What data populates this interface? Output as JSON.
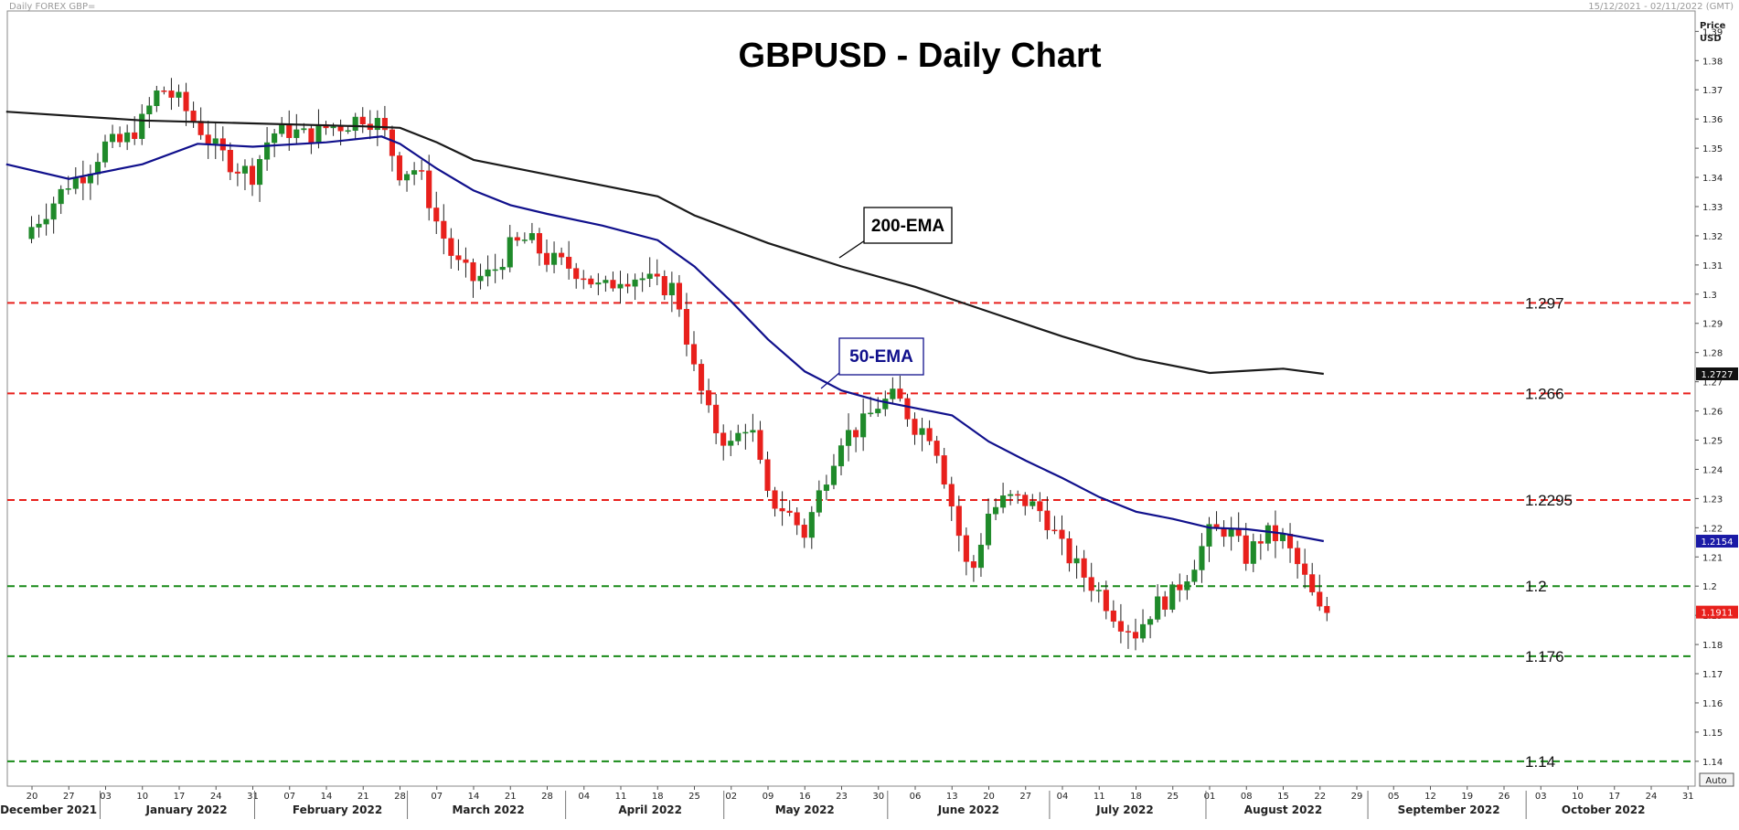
{
  "header": {
    "left_text": "Daily FOREX GBP=",
    "right_text": "15/12/2021 - 02/11/2022 (GMT)"
  },
  "axis": {
    "price_label_line1": "Price",
    "price_label_line2": "USD",
    "auto_label": "Auto"
  },
  "chart_data": {
    "type": "candlestick",
    "title": "GBPUSD - Daily Chart",
    "ylim": [
      1.134,
      1.397
    ],
    "y_ticks": [
      1.14,
      1.15,
      1.16,
      1.17,
      1.18,
      1.19,
      1.2,
      1.21,
      1.22,
      1.23,
      1.24,
      1.25,
      1.26,
      1.27,
      1.28,
      1.29,
      1.3,
      1.31,
      1.32,
      1.33,
      1.34,
      1.35,
      1.36,
      1.37,
      1.38,
      1.39
    ],
    "x_ticks": [
      {
        "label": "20",
        "week": 0
      },
      {
        "label": "27",
        "week": 1
      },
      {
        "label": "03",
        "week": 2
      },
      {
        "label": "10",
        "week": 3
      },
      {
        "label": "17",
        "week": 4
      },
      {
        "label": "24",
        "week": 5
      },
      {
        "label": "31",
        "week": 6
      },
      {
        "label": "07",
        "week": 7
      },
      {
        "label": "14",
        "week": 8
      },
      {
        "label": "21",
        "week": 9
      },
      {
        "label": "28",
        "week": 10
      },
      {
        "label": "07",
        "week": 11
      },
      {
        "label": "14",
        "week": 12
      },
      {
        "label": "21",
        "week": 13
      },
      {
        "label": "28",
        "week": 14
      },
      {
        "label": "04",
        "week": 15
      },
      {
        "label": "11",
        "week": 16
      },
      {
        "label": "18",
        "week": 17
      },
      {
        "label": "25",
        "week": 18
      },
      {
        "label": "02",
        "week": 19
      },
      {
        "label": "09",
        "week": 20
      },
      {
        "label": "16",
        "week": 21
      },
      {
        "label": "23",
        "week": 22
      },
      {
        "label": "30",
        "week": 23
      },
      {
        "label": "06",
        "week": 24
      },
      {
        "label": "13",
        "week": 25
      },
      {
        "label": "20",
        "week": 26
      },
      {
        "label": "27",
        "week": 27
      },
      {
        "label": "04",
        "week": 28
      },
      {
        "label": "11",
        "week": 29
      },
      {
        "label": "18",
        "week": 30
      },
      {
        "label": "25",
        "week": 31
      },
      {
        "label": "01",
        "week": 32
      },
      {
        "label": "08",
        "week": 33
      },
      {
        "label": "15",
        "week": 34
      },
      {
        "label": "22",
        "week": 35
      },
      {
        "label": "29",
        "week": 36
      },
      {
        "label": "05",
        "week": 37
      },
      {
        "label": "12",
        "week": 38
      },
      {
        "label": "19",
        "week": 39
      },
      {
        "label": "26",
        "week": 40
      },
      {
        "label": "03",
        "week": 41
      },
      {
        "label": "10",
        "week": 42
      },
      {
        "label": "17",
        "week": 43
      },
      {
        "label": "24",
        "week": 44
      },
      {
        "label": "31",
        "week": 45
      }
    ],
    "months": [
      {
        "label": "December 2021",
        "week": 0.45
      },
      {
        "label": "January 2022",
        "week": 4.2
      },
      {
        "label": "February 2022",
        "week": 8.3
      },
      {
        "label": "March 2022",
        "week": 12.4
      },
      {
        "label": "April 2022",
        "week": 16.8
      },
      {
        "label": "May 2022",
        "week": 21.0
      },
      {
        "label": "June 2022",
        "week": 25.45
      },
      {
        "label": "July 2022",
        "week": 29.7
      },
      {
        "label": "August 2022",
        "week": 34.0
      },
      {
        "label": "September 2022",
        "week": 38.5
      },
      {
        "label": "October 2022",
        "week": 42.7
      }
    ],
    "levels": [
      {
        "label": "1.297",
        "value": 1.297,
        "color": "#e8201c"
      },
      {
        "label": "1.266",
        "value": 1.266,
        "color": "#e8201c"
      },
      {
        "label": "1.2295",
        "value": 1.2295,
        "color": "#e8201c"
      },
      {
        "label": "1.2",
        "value": 1.2,
        "color": "#188a18"
      },
      {
        "label": "1.176",
        "value": 1.176,
        "color": "#188a18"
      },
      {
        "label": "1.14",
        "value": 1.14,
        "color": "#188a18"
      }
    ],
    "series": [
      {
        "name": "200-EMA",
        "color": "#1a1a1a",
        "points": [
          [
            -0.7,
            1.3625
          ],
          [
            3,
            1.3595
          ],
          [
            6,
            1.3585
          ],
          [
            9,
            1.3575
          ],
          [
            10,
            1.357
          ],
          [
            11,
            1.352
          ],
          [
            12,
            1.346
          ],
          [
            14,
            1.341
          ],
          [
            17,
            1.3335
          ],
          [
            18,
            1.327
          ],
          [
            20,
            1.3175
          ],
          [
            22,
            1.3095
          ],
          [
            24,
            1.3025
          ],
          [
            26,
            1.294
          ],
          [
            28,
            1.2855
          ],
          [
            30,
            1.278
          ],
          [
            32,
            1.273
          ],
          [
            34,
            1.2745
          ],
          [
            35.1,
            1.2727
          ]
        ]
      },
      {
        "name": "50-EMA",
        "color": "#10108c",
        "points": [
          [
            -0.7,
            1.3445
          ],
          [
            1,
            1.3395
          ],
          [
            3,
            1.3445
          ],
          [
            4.5,
            1.3515
          ],
          [
            6,
            1.3505
          ],
          [
            8,
            1.352
          ],
          [
            9.5,
            1.354
          ],
          [
            10,
            1.3515
          ],
          [
            11,
            1.343
          ],
          [
            12,
            1.3355
          ],
          [
            13,
            1.3305
          ],
          [
            14,
            1.3275
          ],
          [
            15.5,
            1.3235
          ],
          [
            17,
            1.3185
          ],
          [
            18,
            1.3095
          ],
          [
            19,
            1.2975
          ],
          [
            20,
            1.2845
          ],
          [
            21,
            1.2735
          ],
          [
            22,
            1.267
          ],
          [
            23,
            1.2635
          ],
          [
            24,
            1.261
          ],
          [
            25,
            1.2585
          ],
          [
            26,
            1.2495
          ],
          [
            27,
            1.243
          ],
          [
            28,
            1.237
          ],
          [
            29,
            1.2305
          ],
          [
            30,
            1.2255
          ],
          [
            31,
            1.223
          ],
          [
            32,
            1.22
          ],
          [
            33,
            1.2195
          ],
          [
            34,
            1.218
          ],
          [
            35.1,
            1.2154
          ]
        ]
      }
    ],
    "annotations": [
      {
        "label": "200-EMA",
        "color": "#000000"
      },
      {
        "label": "50-EMA",
        "color": "#10108c"
      }
    ],
    "price_tags": [
      {
        "label": "1.2727",
        "value": 1.2727,
        "bg": "#111111",
        "fg": "#ffffff"
      },
      {
        "label": "1.2154",
        "value": 1.2154,
        "bg": "#1a1aa6",
        "fg": "#ffffff"
      },
      {
        "label": "1.1911",
        "value": 1.1911,
        "bg": "#e8201c",
        "fg": "#ffffff"
      }
    ],
    "candles_anchor_closes": [
      [
        0,
        1.323
      ],
      [
        0.5,
        1.33
      ],
      [
        1,
        1.338
      ],
      [
        1.5,
        1.342
      ],
      [
        2,
        1.351
      ],
      [
        2.5,
        1.352
      ],
      [
        3,
        1.359
      ],
      [
        3.5,
        1.371
      ],
      [
        4,
        1.366
      ],
      [
        4.5,
        1.358
      ],
      [
        5,
        1.35
      ],
      [
        5.5,
        1.344
      ],
      [
        6,
        1.341
      ],
      [
        6.5,
        1.355
      ],
      [
        7,
        1.356
      ],
      [
        7.5,
        1.354
      ],
      [
        8,
        1.357
      ],
      [
        8.5,
        1.358
      ],
      [
        9,
        1.361
      ],
      [
        9.5,
        1.358
      ],
      [
        10,
        1.342
      ],
      [
        10.5,
        1.343
      ],
      [
        11,
        1.325
      ],
      [
        11.5,
        1.311
      ],
      [
        12,
        1.305
      ],
      [
        12.5,
        1.307
      ],
      [
        13,
        1.316
      ],
      [
        13.5,
        1.319
      ],
      [
        14,
        1.312
      ],
      [
        14.5,
        1.31
      ],
      [
        15,
        1.307
      ],
      [
        15.5,
        1.301
      ],
      [
        16,
        1.306
      ],
      [
        16.5,
        1.306
      ],
      [
        17,
        1.303
      ],
      [
        17.5,
        1.302
      ],
      [
        18,
        1.274
      ],
      [
        18.5,
        1.255
      ],
      [
        19,
        1.248
      ],
      [
        19.5,
        1.257
      ],
      [
        20,
        1.23
      ],
      [
        20.5,
        1.226
      ],
      [
        21,
        1.218
      ],
      [
        21.5,
        1.235
      ],
      [
        22,
        1.251
      ],
      [
        22.5,
        1.254
      ],
      [
        23,
        1.262
      ],
      [
        23.5,
        1.265
      ],
      [
        24,
        1.255
      ],
      [
        24.5,
        1.252
      ],
      [
        25,
        1.228
      ],
      [
        25.5,
        1.202
      ],
      [
        26,
        1.225
      ],
      [
        26.5,
        1.23
      ],
      [
        27,
        1.229
      ],
      [
        27.5,
        1.225
      ],
      [
        28,
        1.213
      ],
      [
        28.5,
        1.205
      ],
      [
        29,
        1.198
      ],
      [
        29.5,
        1.189
      ],
      [
        30,
        1.184
      ],
      [
        30.5,
        1.193
      ],
      [
        31,
        1.197
      ],
      [
        31.5,
        1.206
      ],
      [
        32,
        1.218
      ],
      [
        32.5,
        1.22
      ],
      [
        33,
        1.21
      ],
      [
        33.5,
        1.218
      ],
      [
        34,
        1.216
      ],
      [
        34.5,
        1.205
      ],
      [
        35,
        1.1911
      ]
    ]
  }
}
